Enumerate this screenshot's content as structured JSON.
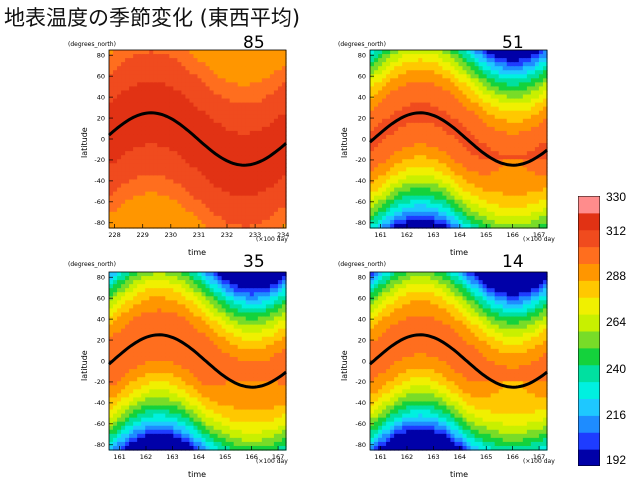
{
  "title": "地表温度の季節変化 (東西平均)",
  "colorbar": {
    "ticks": [
      "330",
      "312",
      "288",
      "264",
      "240",
      "216",
      "192"
    ],
    "tick_values": [
      330,
      312,
      288,
      264,
      240,
      216,
      192
    ],
    "colors": [
      "#0000a8",
      "#1e3cff",
      "#1e8cff",
      "#1ec8ff",
      "#00f0e0",
      "#00e0a0",
      "#14d23c",
      "#78dc28",
      "#c8f000",
      "#f0f000",
      "#ffc800",
      "#ff9600",
      "#ff6e1e",
      "#f04b1e",
      "#e13214",
      "#ff8c8c"
    ]
  },
  "panels": [
    {
      "label": "85",
      "y_label": "(degrees_north)",
      "y_axis_title": "latitude",
      "x_axis_title": "time",
      "x_unit": "(×100 day",
      "x_ticks": [
        "228",
        "229",
        "230",
        "231",
        "232",
        "233",
        "234"
      ],
      "y_ticks": [
        "80",
        "60",
        "40",
        "20",
        "0",
        "-20",
        "-40",
        "-60",
        "-80"
      ]
    },
    {
      "label": "51",
      "y_label": "(degrees_north)",
      "y_axis_title": "latitude",
      "x_axis_title": "time",
      "x_unit": "(×100 day",
      "x_ticks": [
        "161",
        "162",
        "163",
        "164",
        "165",
        "166",
        "167"
      ],
      "y_ticks": [
        "80",
        "60",
        "40",
        "20",
        "0",
        "-20",
        "-40",
        "-60",
        "-80"
      ]
    },
    {
      "label": "35",
      "y_label": "(degrees_north)",
      "y_axis_title": "latitude",
      "x_axis_title": "time",
      "x_unit": "(×100 day",
      "x_ticks": [
        "161",
        "162",
        "163",
        "164",
        "165",
        "166",
        "167"
      ],
      "y_ticks": [
        "80",
        "60",
        "40",
        "20",
        "0",
        "-20",
        "-40",
        "-60",
        "-80"
      ]
    },
    {
      "label": "14",
      "y_label": "(degrees_north)",
      "y_axis_title": "latitude",
      "x_axis_title": "time",
      "x_unit": "(×100 day",
      "x_ticks": [
        "161",
        "162",
        "163",
        "164",
        "165",
        "166",
        "167"
      ],
      "y_ticks": [
        "80",
        "60",
        "40",
        "20",
        "0",
        "-20",
        "-40",
        "-60",
        "-80"
      ]
    }
  ],
  "chart_data": [
    {
      "type": "heatmap",
      "label": "85",
      "x": [
        227.8,
        234.1
      ],
      "y": [
        -85,
        85
      ],
      "xlabel": "time",
      "ylabel": "latitude",
      "zrange": [
        192,
        330
      ],
      "sine_peak_x": 229.3,
      "sine_amplitude": 25
    },
    {
      "type": "heatmap",
      "label": "51",
      "x": [
        160.6,
        167.3
      ],
      "y": [
        -85,
        85
      ],
      "xlabel": "time",
      "ylabel": "latitude",
      "zrange": [
        192,
        330
      ],
      "sine_peak_x": 162.5,
      "sine_amplitude": 25
    },
    {
      "type": "heatmap",
      "label": "35",
      "x": [
        160.6,
        167.3
      ],
      "y": [
        -85,
        85
      ],
      "xlabel": "time",
      "ylabel": "latitude",
      "zrange": [
        192,
        330
      ],
      "sine_peak_x": 162.5,
      "sine_amplitude": 25
    },
    {
      "type": "heatmap",
      "label": "14",
      "x": [
        160.6,
        167.3
      ],
      "y": [
        -85,
        85
      ],
      "xlabel": "time",
      "ylabel": "latitude",
      "zrange": [
        192,
        330
      ],
      "sine_peak_x": 162.5,
      "sine_amplitude": 25
    }
  ]
}
